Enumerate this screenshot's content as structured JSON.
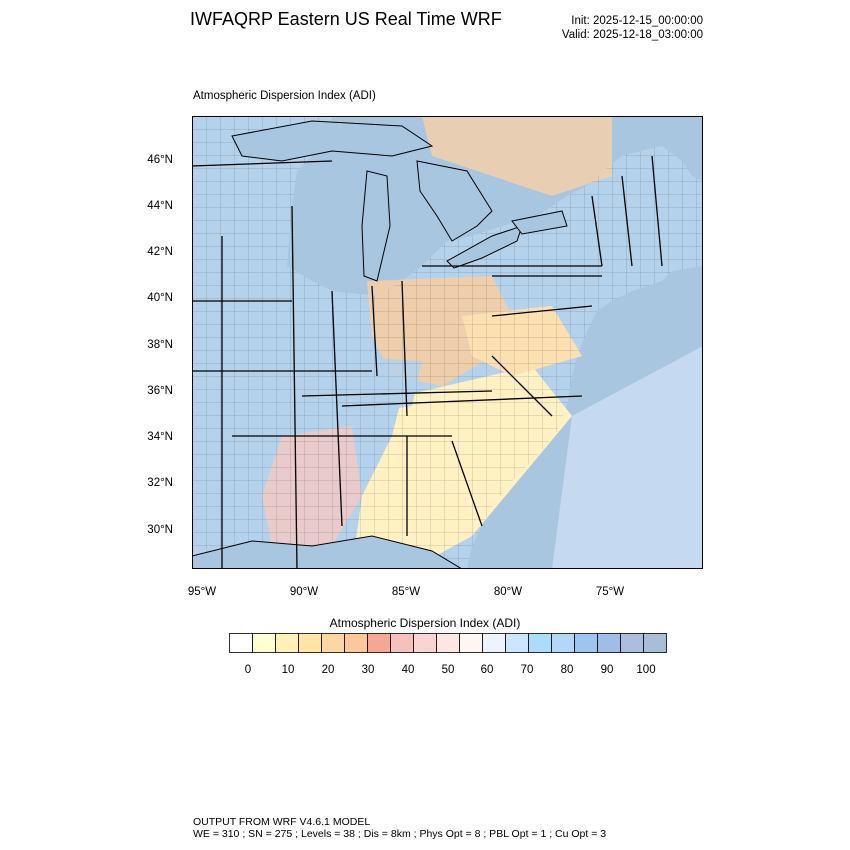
{
  "header": {
    "title": "IWFAQRP Eastern US Real Time WRF",
    "init": "Init: 2025-12-15_00:00:00",
    "valid": "Valid: 2025-12-18_03:00:00"
  },
  "map": {
    "field_label": "Atmospheric Dispersion Index   (ADI)",
    "lat_labels": [
      "46°N",
      "44°N",
      "42°N",
      "40°N",
      "38°N",
      "36°N",
      "34°N",
      "32°N",
      "30°N"
    ],
    "lon_labels": [
      "95°W",
      "90°W",
      "85°W",
      "80°W",
      "75°W"
    ],
    "colors": {
      "water": "#a9c6e0",
      "land_blue": "#b5d2ec",
      "land_yellow": "#fff1c2",
      "land_orange": "#f9cfa0",
      "land_pink": "#f5c9c2",
      "boundary": "#000000"
    }
  },
  "colorbar": {
    "title": "Atmospheric Dispersion Index  (ADI)",
    "tick_labels": [
      "0",
      "10",
      "20",
      "30",
      "40",
      "50",
      "60",
      "70",
      "80",
      "90",
      "100"
    ],
    "bins": [
      "#ffffff",
      "#ffffd4",
      "#fff1b8",
      "#ffe4a8",
      "#fdd7a2",
      "#fbc89a",
      "#f5a695",
      "#f6c1bb",
      "#fad4d0",
      "#fde6e4",
      "#fff6f5",
      "#eef4ff",
      "#cde6ff",
      "#abdcfa",
      "#b2d7f7",
      "#9ec4f0",
      "#9fbde6",
      "#aabfe0",
      "#a6bed8"
    ]
  },
  "footer": {
    "line1": "OUTPUT FROM WRF V4.6.1 MODEL",
    "line2": "WE = 310 ; SN = 275 ; Levels = 38 ; Dis = 8km ; Phys Opt = 8 ; PBL Opt = 1 ; Cu Opt = 3"
  }
}
